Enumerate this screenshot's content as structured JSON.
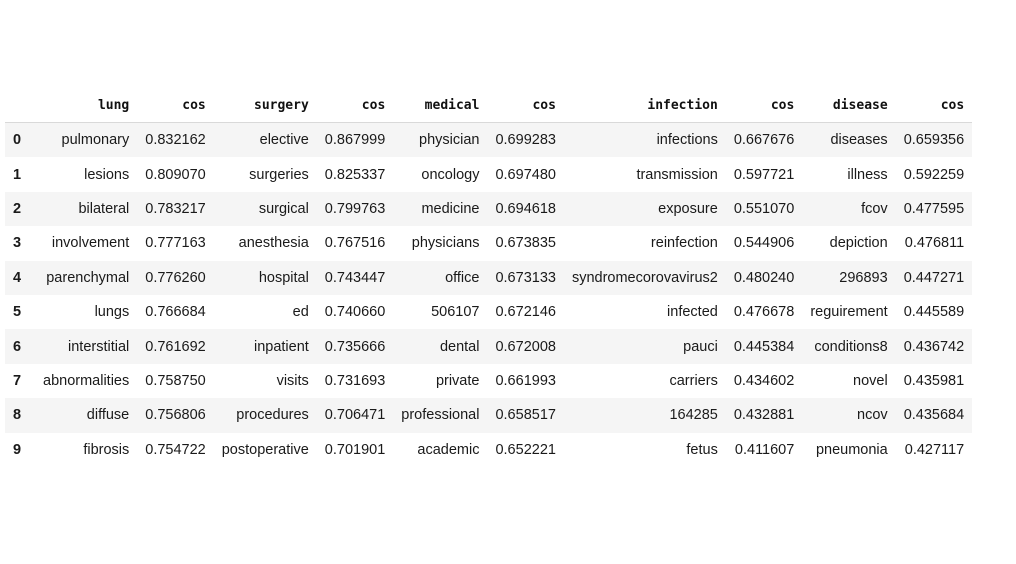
{
  "table": {
    "columns": [
      "lung",
      "cos",
      "surgery",
      "cos",
      "medical",
      "cos",
      "infection",
      "cos",
      "disease",
      "cos"
    ],
    "rows": [
      {
        "index": "0",
        "cells": [
          "pulmonary",
          "0.832162",
          "elective",
          "0.867999",
          "physician",
          "0.699283",
          "infections",
          "0.667676",
          "diseases",
          "0.659356"
        ]
      },
      {
        "index": "1",
        "cells": [
          "lesions",
          "0.809070",
          "surgeries",
          "0.825337",
          "oncology",
          "0.697480",
          "transmission",
          "0.597721",
          "illness",
          "0.592259"
        ]
      },
      {
        "index": "2",
        "cells": [
          "bilateral",
          "0.783217",
          "surgical",
          "0.799763",
          "medicine",
          "0.694618",
          "exposure",
          "0.551070",
          "fcov",
          "0.477595"
        ]
      },
      {
        "index": "3",
        "cells": [
          "involvement",
          "0.777163",
          "anesthesia",
          "0.767516",
          "physicians",
          "0.673835",
          "reinfection",
          "0.544906",
          "depiction",
          "0.476811"
        ]
      },
      {
        "index": "4",
        "cells": [
          "parenchymal",
          "0.776260",
          "hospital",
          "0.743447",
          "office",
          "0.673133",
          "syndromecorovavirus2",
          "0.480240",
          "296893",
          "0.447271"
        ]
      },
      {
        "index": "5",
        "cells": [
          "lungs",
          "0.766684",
          "ed",
          "0.740660",
          "506107",
          "0.672146",
          "infected",
          "0.476678",
          "reguirement",
          "0.445589"
        ]
      },
      {
        "index": "6",
        "cells": [
          "interstitial",
          "0.761692",
          "inpatient",
          "0.735666",
          "dental",
          "0.672008",
          "pauci",
          "0.445384",
          "conditions8",
          "0.436742"
        ]
      },
      {
        "index": "7",
        "cells": [
          "abnormalities",
          "0.758750",
          "visits",
          "0.731693",
          "private",
          "0.661993",
          "carriers",
          "0.434602",
          "novel",
          "0.435981"
        ]
      },
      {
        "index": "8",
        "cells": [
          "diffuse",
          "0.756806",
          "procedures",
          "0.706471",
          "professional",
          "0.658517",
          "164285",
          "0.432881",
          "ncov",
          "0.435684"
        ]
      },
      {
        "index": "9",
        "cells": [
          "fibrosis",
          "0.754722",
          "postoperative",
          "0.701901",
          "academic",
          "0.652221",
          "fetus",
          "0.411607",
          "pneumonia",
          "0.427117"
        ]
      }
    ]
  }
}
